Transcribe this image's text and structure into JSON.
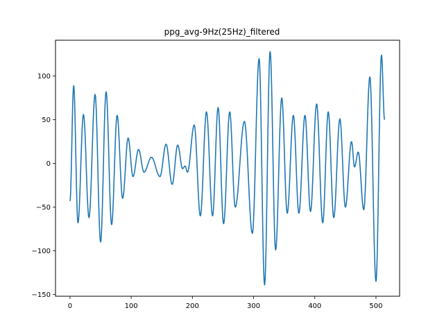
{
  "chart_data": {
    "type": "line",
    "title": "ppg_avg-9Hz(25Hz)_filtered",
    "xlabel": "",
    "ylabel": "",
    "xlim": [
      -23.7,
      538.6
    ],
    "ylim": [
      -152,
      141
    ],
    "x_ticks": [
      0,
      100,
      200,
      300,
      400,
      500
    ],
    "y_ticks": [
      -150,
      -100,
      -50,
      0,
      50,
      100
    ],
    "grid": false,
    "legend": "none",
    "line_color": "#1f77b4",
    "series": [
      {
        "extrema": [
          [
            0,
            -43
          ],
          [
            6,
            89
          ],
          [
            13,
            -68
          ],
          [
            22,
            56
          ],
          [
            31,
            -62
          ],
          [
            41,
            79
          ],
          [
            50,
            -90
          ],
          [
            59,
            82
          ],
          [
            68,
            -70
          ],
          [
            77,
            55
          ],
          [
            86,
            -40
          ],
          [
            95,
            29
          ],
          [
            103,
            -15
          ],
          [
            112,
            16
          ],
          [
            121,
            -10
          ],
          [
            133,
            7
          ],
          [
            147,
            -15
          ],
          [
            157,
            22
          ],
          [
            167,
            -24
          ],
          [
            176,
            21
          ],
          [
            184,
            -6
          ],
          [
            188,
            -3
          ],
          [
            192,
            -10
          ],
          [
            203,
            44
          ],
          [
            213,
            -60
          ],
          [
            223,
            59
          ],
          [
            233,
            -60
          ],
          [
            242,
            64
          ],
          [
            251,
            -69
          ],
          [
            261,
            59
          ],
          [
            270,
            -50
          ],
          [
            285,
            48
          ],
          [
            298,
            -80
          ],
          [
            309,
            120
          ],
          [
            318,
            -139
          ],
          [
            327,
            128
          ],
          [
            336,
            -99
          ],
          [
            346,
            75
          ],
          [
            355,
            -57
          ],
          [
            365,
            55
          ],
          [
            374,
            -57
          ],
          [
            384,
            55
          ],
          [
            393,
            -55
          ],
          [
            403,
            68
          ],
          [
            413,
            -68
          ],
          [
            422,
            59
          ],
          [
            431,
            -62
          ],
          [
            441,
            51
          ],
          [
            450,
            -50
          ],
          [
            460,
            25
          ],
          [
            465,
            -4
          ],
          [
            471,
            13
          ],
          [
            480,
            -53
          ],
          [
            490,
            99
          ],
          [
            500,
            -135
          ],
          [
            509,
            124
          ],
          [
            514,
            50
          ]
        ]
      }
    ]
  }
}
